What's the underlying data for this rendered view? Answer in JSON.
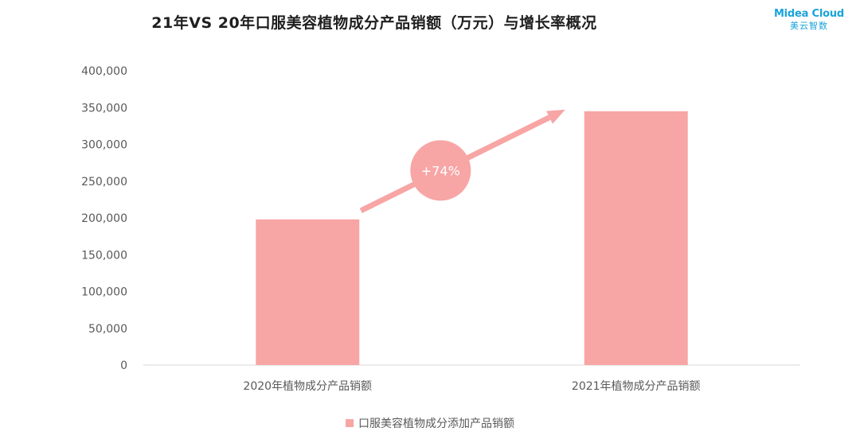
{
  "header": {
    "title": "21年VS 20年口服美容植物成分产品销额（万元）与增长率概况"
  },
  "logo": {
    "brand": "Midea Cloud",
    "brand_sub": "美云智数"
  },
  "annotation": {
    "growth_label": "+74%"
  },
  "colors": {
    "bar": "#f8a5a5",
    "arrow": "#f8a5a5",
    "bubble": "#f8a5a5",
    "axis": "#d9d9d9",
    "logo": "#1aa3d9"
  },
  "chart_data": {
    "type": "bar",
    "title": "21年VS 20年口服美容植物成分产品销额（万元）与增长率概况",
    "categories": [
      "2020年植物成分产品销额",
      "2021年植物成分产品销额"
    ],
    "series": [
      {
        "name": "口服美容植物成分添加产品销额",
        "values": [
          198000,
          345000
        ]
      }
    ],
    "ylim": [
      0,
      400000
    ],
    "yticks": [
      0,
      50000,
      100000,
      150000,
      200000,
      250000,
      300000,
      350000,
      400000
    ],
    "ytick_labels": [
      "0",
      "50,000",
      "100,000",
      "150,000",
      "200,000",
      "250,000",
      "300,000",
      "350,000",
      "400,000"
    ],
    "grid": false,
    "legend_position": "bottom"
  }
}
